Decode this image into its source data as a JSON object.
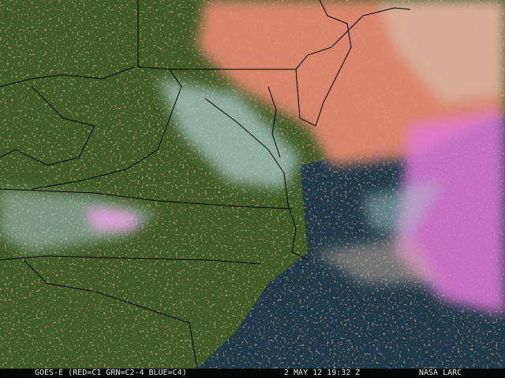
{
  "caption": {
    "satellite": "GOES-E (RED=C1 GRN=C2-4 BLUE=C4)",
    "datetime": "2 MAY 12 19:32 Z",
    "credit": "NASA LARC"
  },
  "colors": {
    "land": "#3f5a26",
    "ocean": "#1e3a48",
    "warm_cloud": "#e88a72",
    "cold_cloud": "#e07ad6",
    "thin_cloud": "#a8c8c8",
    "boundaries": "#000000"
  }
}
